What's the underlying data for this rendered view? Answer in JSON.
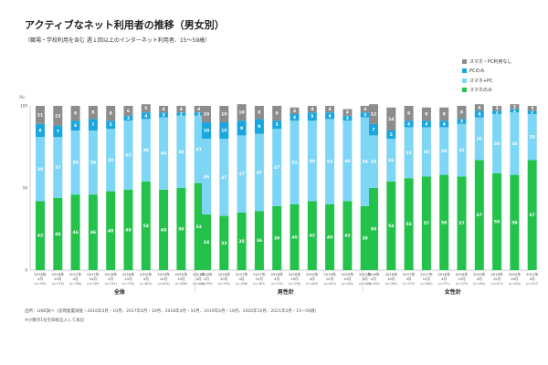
{
  "title": "アクティブなネット利用者の推移（男女別）",
  "subtitle": "（職場・学校利用を含む 週１回以上のインターネット利用者、15〜59歳）",
  "colors": {
    "none": "#8c8c8c",
    "pc": "#1aa6de",
    "both": "#7dd6f5",
    "sp": "#23c24a",
    "divider": "#d0d0d0",
    "axis": "#999999"
  },
  "legend": [
    {
      "key": "none",
      "label": "スマホ・PC利用なし"
    },
    {
      "key": "pc",
      "label": "PCのみ"
    },
    {
      "key": "both",
      "label": "スマホ+PC"
    },
    {
      "key": "sp",
      "label": "スマホのみ"
    }
  ],
  "footer": {
    "source": "出所：LINE調べ（訪問留置調査・2016年4月・10月、2017年4月・10月、2018年4月・10月、2019年4月・10月、2020年10月、2021年4月・15〜59歳）",
    "note": "※小数点1位を四捨五入して表記"
  },
  "chart_data": {
    "type": "bar",
    "stacked": true,
    "ylim": [
      0,
      100
    ],
    "y_axis_label": "（%）",
    "y_ticks": [
      "0",
      "50",
      "100"
    ],
    "series_order": [
      "sp",
      "both",
      "pc",
      "none"
    ],
    "periods": [
      [
        "2016年",
        "4月"
      ],
      [
        "2016年",
        "10月"
      ],
      [
        "2017年",
        "4月"
      ],
      [
        "2017年",
        "10月"
      ],
      [
        "2018年",
        "4月"
      ],
      [
        "2018年",
        "10月"
      ],
      [
        "2019年",
        "4月"
      ],
      [
        "2019年",
        "10月"
      ],
      [
        "2020年",
        "10月"
      ],
      [
        "2021年",
        "4月"
      ]
    ],
    "groups": [
      {
        "name": "全体",
        "n": [
          "(n=708)",
          "(n=718)",
          "(n=768)",
          "(n=749)",
          "(n=745)",
          "(n=753)",
          "(n=803)",
          "(n=816)",
          "(n=806)",
          "(n=826)"
        ],
        "sp": [
          42,
          44,
          46,
          46,
          48,
          49,
          54,
          49,
          50,
          53
        ],
        "both": [
          39,
          37,
          39,
          39,
          38,
          42,
          38,
          44,
          44,
          41
        ],
        "pc": [
          8,
          7,
          6,
          7,
          5,
          3,
          4,
          3,
          2,
          2
        ],
        "none": [
          11,
          12,
          9,
          8,
          9,
          6,
          5,
          4,
          4,
          4
        ]
      },
      {
        "name": "男性計",
        "n": [
          "(n=359)",
          "(n=355)",
          "(n=396)",
          "(n=387)",
          "(n=374)",
          "(n=378)",
          "(n=403)",
          "(n=403)",
          "(n=402)",
          "(n=409)"
        ],
        "sp": [
          34,
          33,
          35,
          36,
          39,
          40,
          42,
          40,
          42,
          39
        ],
        "both": [
          46,
          47,
          47,
          47,
          47,
          51,
          49,
          52,
          49,
          54
        ],
        "pc": [
          10,
          10,
          9,
          9,
          5,
          4,
          5,
          4,
          3,
          3
        ],
        "none": [
          10,
          10,
          10,
          8,
          9,
          4,
          4,
          4,
          4,
          4
        ]
      },
      {
        "name": "女性計",
        "n": [
          "(n=349)",
          "(n=363)",
          "(n=372)",
          "(n=362)",
          "(n=371)",
          "(n=375)",
          "(n=400)",
          "(n=413)",
          "(n=404)",
          "(n=417)"
        ],
        "sp": [
          50,
          54,
          56,
          57,
          58,
          57,
          67,
          59,
          58,
          67
        ],
        "both": [
          32,
          26,
          31,
          30,
          29,
          32,
          26,
          36,
          38,
          28
        ],
        "pc": [
          7,
          5,
          4,
          4,
          4,
          3,
          4,
          2,
          2,
          2
        ],
        "none": [
          12,
          14,
          9,
          8,
          8,
          8,
          4,
          3,
          3,
          3
        ]
      }
    ]
  }
}
